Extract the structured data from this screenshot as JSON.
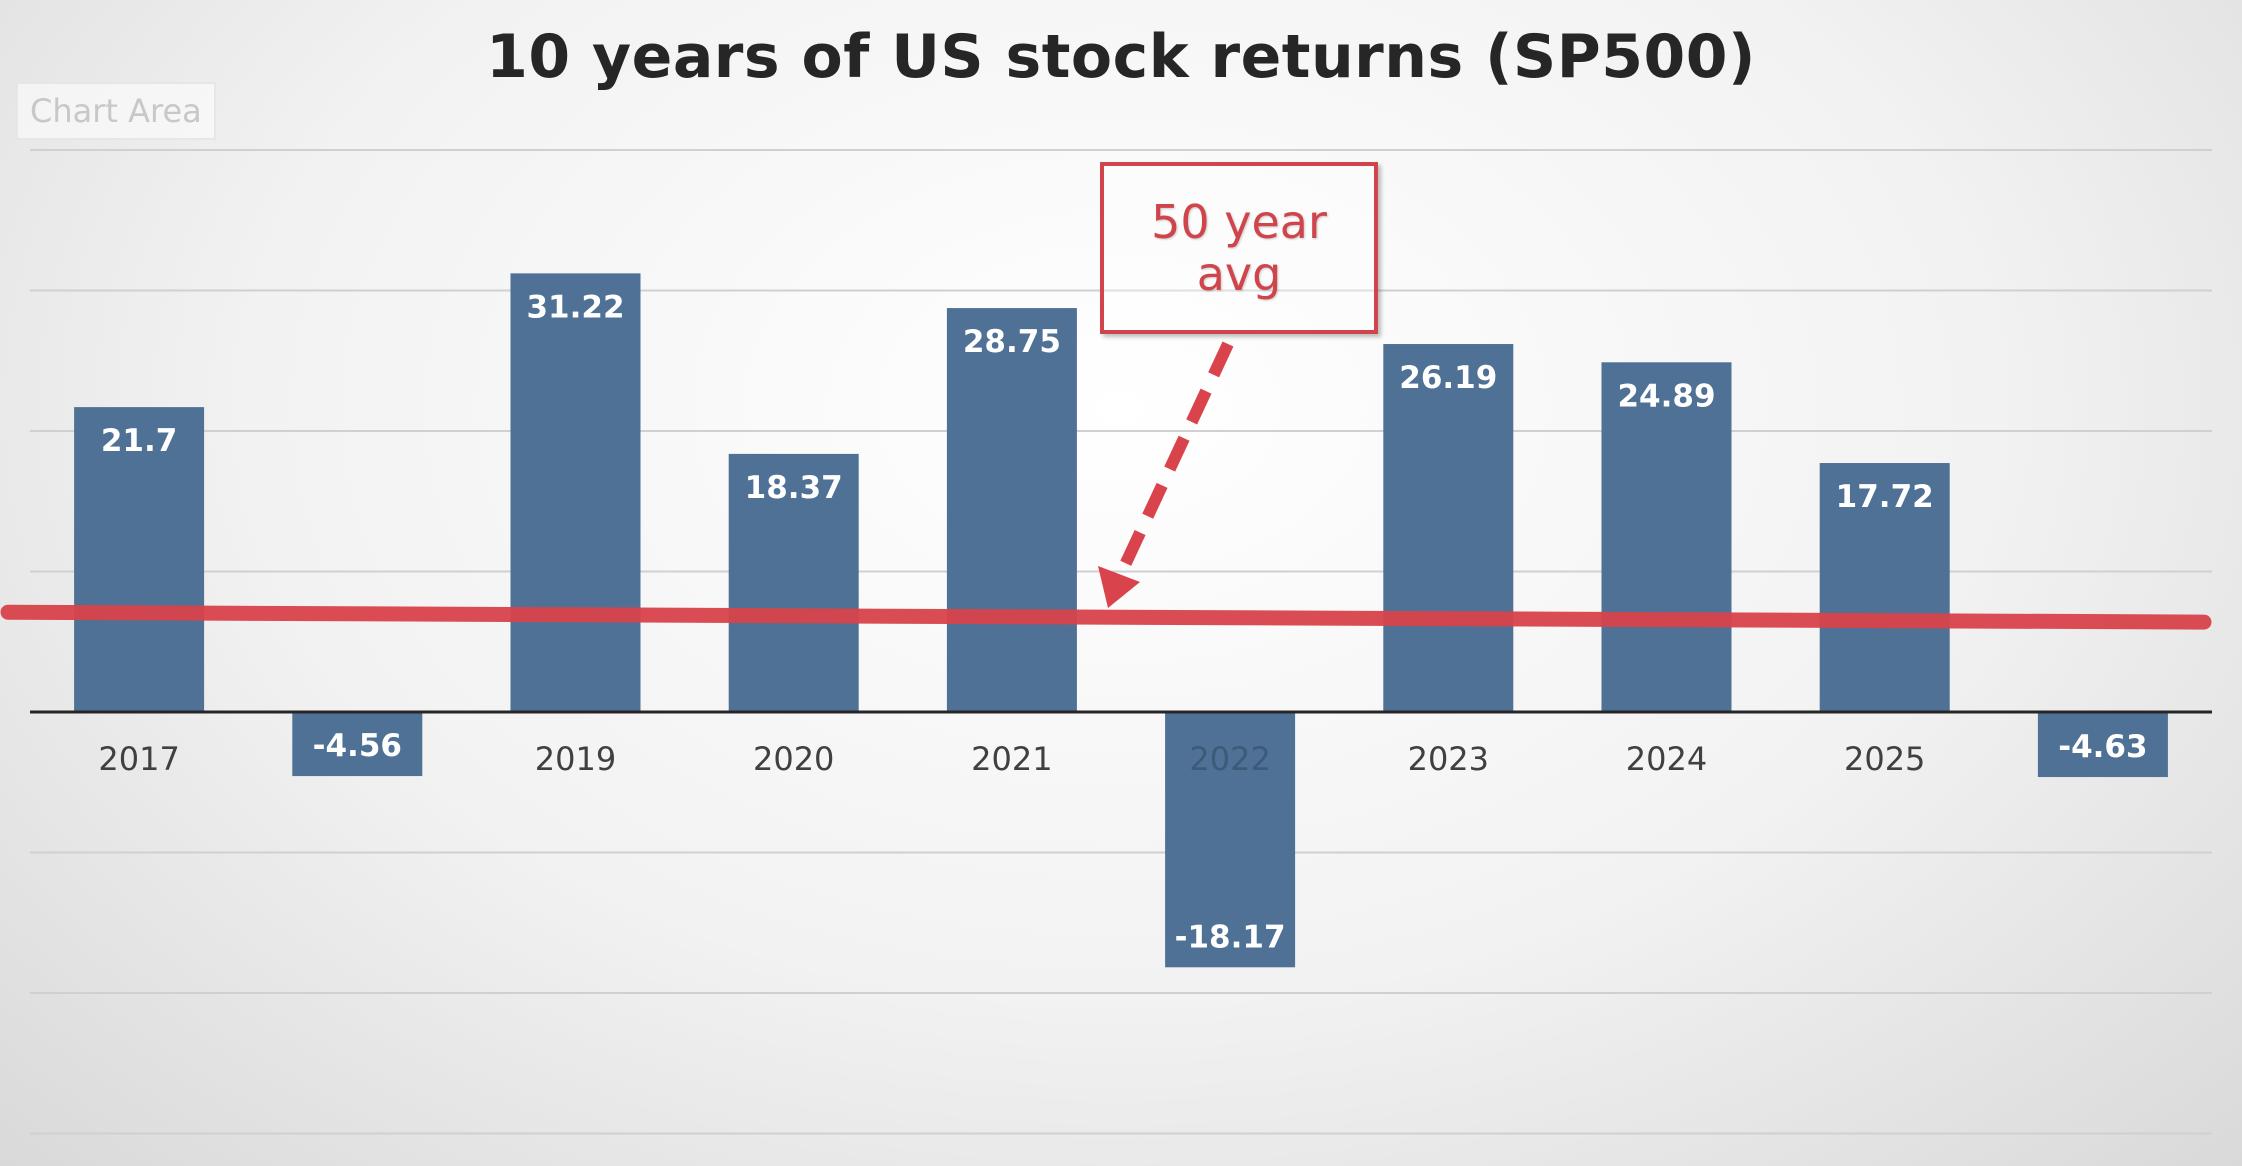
{
  "chart_data": {
    "type": "bar",
    "title": "10 years of US stock returns (SP500)",
    "chart_area_label": "Chart Area",
    "categories": [
      "2017",
      "",
      "2019",
      "2020",
      "2021",
      "2022",
      "2023",
      "2024",
      "2025",
      ""
    ],
    "values": [
      21.7,
      -4.56,
      31.22,
      18.37,
      28.75,
      -18.17,
      26.19,
      24.89,
      17.72,
      -4.63
    ],
    "value_labels": [
      "21.7",
      "-4.56",
      "31.22",
      "18.37",
      "28.75",
      "-18.17",
      "26.19",
      "24.89",
      "17.72",
      "-4.63"
    ],
    "xlabel": "",
    "ylabel": "",
    "ylim": [
      -30,
      40
    ],
    "gridline_step": 10,
    "grid": true,
    "bar_color": "#4e7195",
    "reference_line": {
      "value_start": 7.1,
      "value_end": 6.4,
      "color": "#d9434b"
    },
    "annotation": {
      "text": "50 year avg",
      "color": "#d0454c"
    }
  }
}
